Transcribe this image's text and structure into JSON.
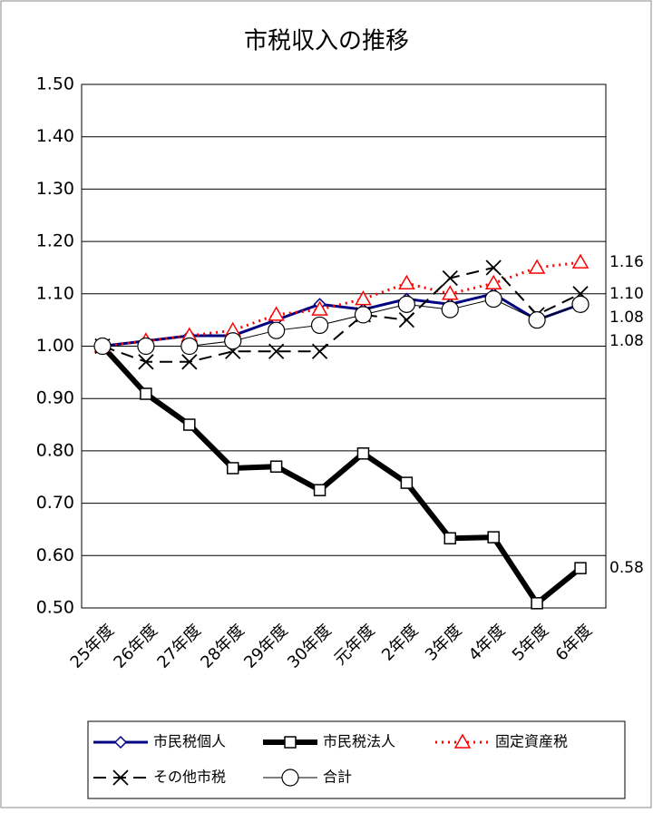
{
  "chart_data": {
    "type": "line",
    "title": "市税収入の推移",
    "categories": [
      "25年度",
      "26年度",
      "27年度",
      "28年度",
      "29年度",
      "30年度",
      "元年度",
      "2年度",
      "3年度",
      "4年度",
      "5年度",
      "6年度"
    ],
    "series": [
      {
        "name": "市民税個人",
        "color": "#000080",
        "marker": "diamond",
        "dash": "solid",
        "width": 3,
        "values": [
          1.0,
          1.01,
          1.02,
          1.02,
          1.05,
          1.08,
          1.07,
          1.09,
          1.08,
          1.1,
          1.05,
          1.08
        ],
        "value_labels": [
          null,
          null,
          null,
          null,
          null,
          null,
          null,
          null,
          null,
          null,
          null,
          "1.08"
        ]
      },
      {
        "name": "市民税法人",
        "color": "#000000",
        "marker": "square",
        "dash": "solid",
        "width": 6,
        "values": [
          1.0,
          0.909,
          0.85,
          0.767,
          0.77,
          0.725,
          0.795,
          0.739,
          0.633,
          0.635,
          0.509,
          0.576
        ],
        "value_labels": [
          null,
          null,
          null,
          null,
          null,
          null,
          null,
          null,
          null,
          null,
          null,
          "0.58"
        ]
      },
      {
        "name": "固定資産税",
        "color": "#ff0000",
        "marker": "triangle",
        "dash": "dotted",
        "width": 3,
        "values": [
          1.0,
          1.01,
          1.02,
          1.03,
          1.06,
          1.07,
          1.09,
          1.12,
          1.1,
          1.12,
          1.15,
          1.16
        ],
        "value_labels": [
          null,
          null,
          null,
          null,
          null,
          null,
          null,
          null,
          null,
          null,
          null,
          "1.16"
        ]
      },
      {
        "name": "その他市税",
        "color": "#000000",
        "marker": "x",
        "dash": "dashed",
        "width": 2,
        "values": [
          1.0,
          0.97,
          0.97,
          0.99,
          0.99,
          0.99,
          1.06,
          1.05,
          1.13,
          1.15,
          1.06,
          1.1
        ],
        "value_labels": [
          null,
          null,
          null,
          null,
          null,
          null,
          null,
          null,
          null,
          null,
          null,
          "1.10"
        ]
      },
      {
        "name": "合計",
        "color": "#000000",
        "marker": "circle",
        "dash": "solid",
        "width": 1,
        "values": [
          1.0,
          1.0,
          1.0,
          1.01,
          1.03,
          1.04,
          1.06,
          1.08,
          1.07,
          1.09,
          1.05,
          1.08
        ],
        "value_labels": [
          null,
          null,
          null,
          null,
          null,
          null,
          null,
          null,
          null,
          null,
          null,
          "1.08"
        ]
      }
    ],
    "ylim": [
      0.5,
      1.5
    ],
    "yticks": [
      {
        "value": 0.5,
        "label": "0.50"
      },
      {
        "value": 0.6,
        "label": "0.60"
      },
      {
        "value": 0.7,
        "label": "0.70"
      },
      {
        "value": 0.8,
        "label": "0.80"
      },
      {
        "value": 0.9,
        "label": "0.90"
      },
      {
        "value": 1.0,
        "label": "1.00"
      },
      {
        "value": 1.1,
        "label": "1.10"
      },
      {
        "value": 1.2,
        "label": "1.20"
      },
      {
        "value": 1.3,
        "label": "1.30"
      },
      {
        "value": 1.4,
        "label": "1.40"
      },
      {
        "value": 1.5,
        "label": "1.50"
      }
    ],
    "grid": true,
    "legend": "bottom"
  }
}
